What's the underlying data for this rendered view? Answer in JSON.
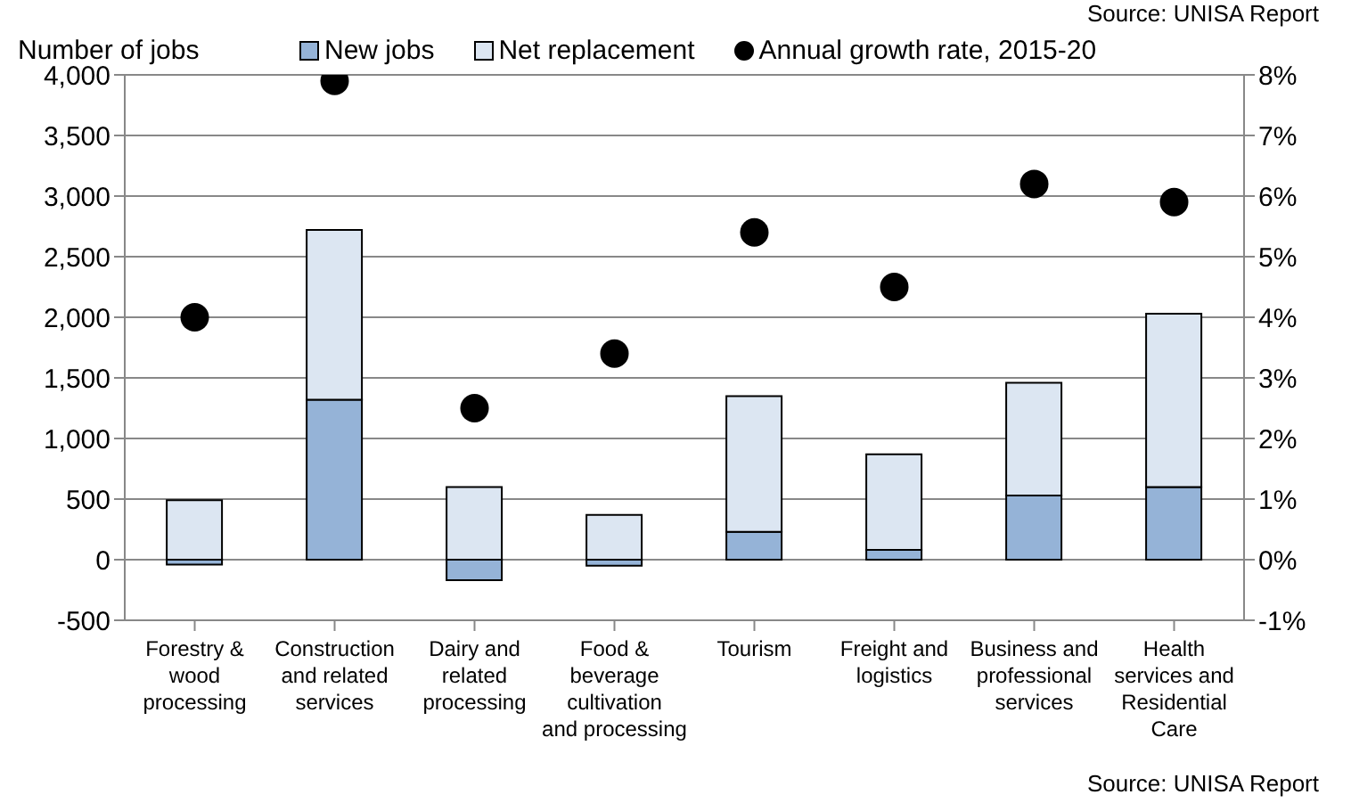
{
  "chart_data": {
    "type": "bar",
    "stacked": true,
    "ylabel": "Number of jobs",
    "categories": [
      "Forestry & wood processing",
      "Construction and related services",
      "Dairy and related processing",
      "Food & beverage cultivation and processing",
      "Tourism",
      "Freight and logistics",
      "Business and professional services",
      "Health services and Residential Care"
    ],
    "series": [
      {
        "name": "New jobs",
        "color": "#95b3d7",
        "values": [
          -40,
          1320,
          -170,
          -50,
          230,
          80,
          530,
          600
        ]
      },
      {
        "name": "Net replacement",
        "color": "#dce6f2",
        "values": [
          490,
          1400,
          600,
          370,
          1120,
          790,
          930,
          1430
        ]
      },
      {
        "name": "Annual growth rate, 2015-20",
        "type": "scatter",
        "axis": "y2",
        "color": "#000000",
        "values": [
          4.0,
          7.9,
          2.5,
          3.4,
          5.4,
          4.5,
          6.2,
          5.9
        ]
      }
    ],
    "ylim": [
      -500,
      4000
    ],
    "yticks": [
      {
        "value": -500,
        "label": "-500"
      },
      0,
      {
        "value": 500,
        "label": "500"
      },
      {
        "value": 1000,
        "label": "1,000"
      },
      {
        "value": 1500,
        "label": "1,500"
      },
      {
        "value": 2000,
        "label": "2,000"
      },
      {
        "value": 2500,
        "label": "2,500"
      },
      {
        "value": 3000,
        "label": "3,000"
      },
      {
        "value": 3500,
        "label": "3,500"
      },
      {
        "value": 4000,
        "label": "4,000"
      }
    ],
    "y2lim": [
      -1,
      8
    ],
    "y2ticks": [
      {
        "value": -1,
        "label": "-1%"
      },
      {
        "value": 0,
        "label": "0%"
      },
      {
        "value": 1,
        "label": "1%"
      },
      {
        "value": 2,
        "label": "2%"
      },
      {
        "value": 3,
        "label": "3%"
      },
      {
        "value": 4,
        "label": "4%"
      },
      {
        "value": 5,
        "label": "5%"
      },
      {
        "value": 6,
        "label": "6%"
      },
      {
        "value": 7,
        "label": "7%"
      },
      {
        "value": 8,
        "label": "8%"
      }
    ],
    "grid": "y",
    "legend": "top",
    "marker": "circle",
    "annotations": [
      "Source:  UNISA Report",
      "Source:  UNISA Report"
    ]
  }
}
